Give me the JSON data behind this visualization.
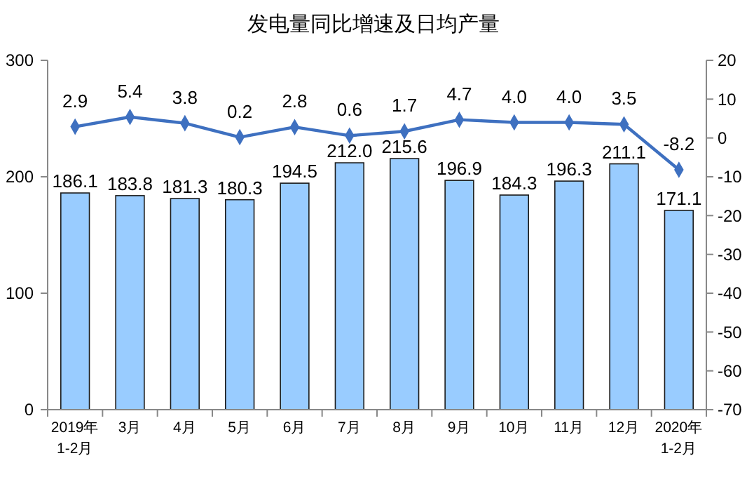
{
  "chart_data": {
    "type": "bar",
    "title": "发电量同比增速及日均产量",
    "categories": [
      "2019年\n1-2月",
      "3月",
      "4月",
      "5月",
      "6月",
      "7月",
      "8月",
      "9月",
      "10月",
      "11月",
      "12月",
      "2020年\n1-2月"
    ],
    "series": [
      {
        "color": "#99ccff",
        "values": [
          186.1,
          183.8,
          181.3,
          180.3,
          194.5,
          212.0,
          215.6,
          196.9,
          184.3,
          196.3,
          211.1,
          171.1
        ],
        "value_labels": [
          "186.1",
          "183.8",
          "181.3",
          "180.3",
          "194.5",
          "212.0",
          "215.6",
          "196.9",
          "184.3",
          "196.3",
          "211.1",
          "171.1"
        ]
      },
      {
        "type": "line",
        "axis": "y2",
        "color": "#3e70c0",
        "marker": "diamond",
        "values": [
          2.9,
          5.4,
          3.8,
          0.2,
          2.8,
          0.6,
          1.7,
          4.7,
          4.0,
          4.0,
          3.5,
          -8.2
        ],
        "value_labels": [
          "2.9",
          "5.4",
          "3.8",
          "0.2",
          "2.8",
          "0.6",
          "1.7",
          "4.7",
          "4.0",
          "4.0",
          "3.5",
          "-8.2"
        ]
      }
    ],
    "ylim": [
      0,
      300
    ],
    "yticks": [
      0,
      100,
      200,
      300
    ],
    "y2lim": [
      -70,
      20
    ],
    "y2ticks": [
      -70,
      -60,
      -50,
      -40,
      -30,
      -20,
      -10,
      0,
      10,
      20
    ],
    "grid": false
  }
}
